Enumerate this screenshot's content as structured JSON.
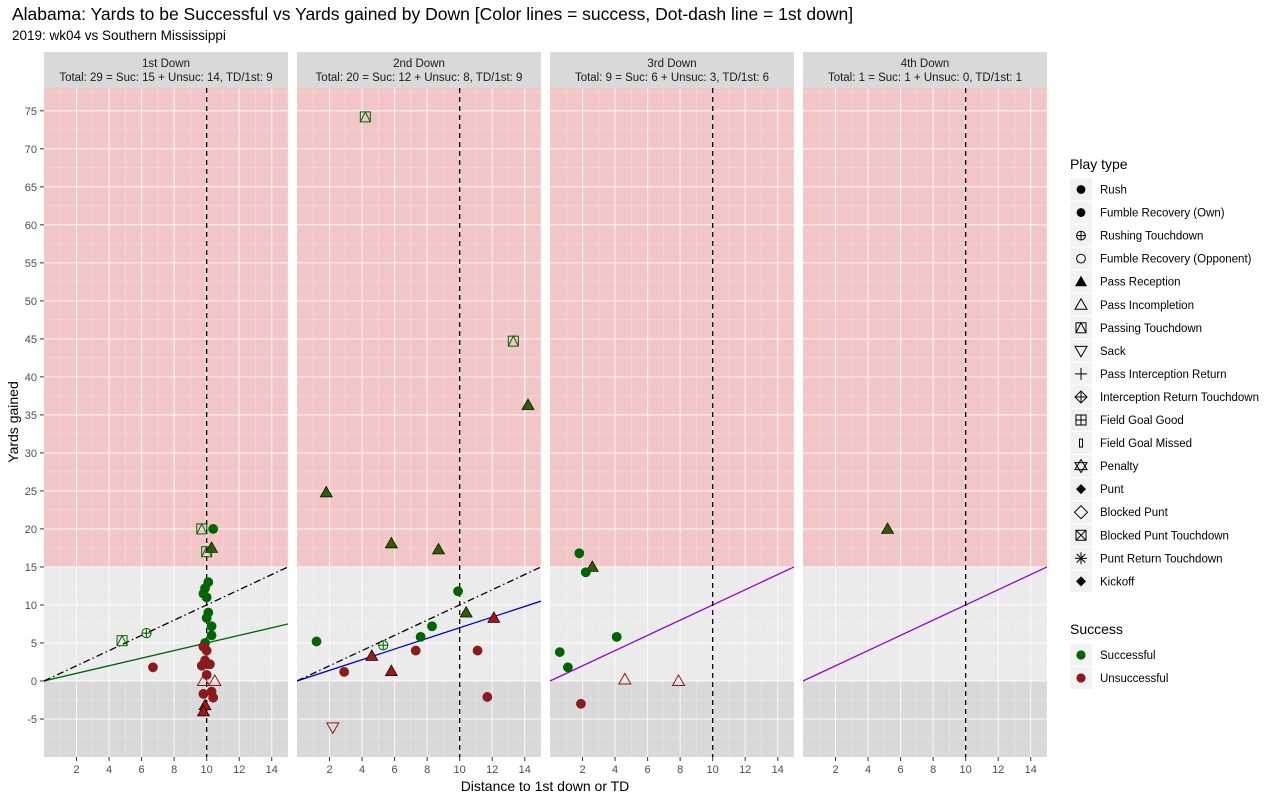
{
  "header": {
    "title": "Alabama: Yards to be Successful vs Yards gained by Down  [Color lines = success, Dot-dash line = 1st down]",
    "subtitle": "2019: wk04 vs Southern Mississippi"
  },
  "colors": {
    "successful": "#006400",
    "unsuccessful": "#8B1A1A",
    "pass_fill_successful": "#2E5E00",
    "pass_fill_unsuccessful": "#A01818",
    "zone_high": "#F2C6C6",
    "zone_mid": "#EBEBEB",
    "zone_low": "#D9D9D9",
    "strip": "#D9D9D9",
    "line_1st": "#006400",
    "line_2nd": "#0000CD",
    "line_3rd": "#9400D3",
    "line_4th": "#9400D3"
  },
  "legend": {
    "play_type_title": "Play type",
    "play_types": [
      {
        "label": "Rush",
        "shape": "circle-filled"
      },
      {
        "label": "Fumble Recovery (Own)",
        "shape": "circle-filled"
      },
      {
        "label": "Rushing Touchdown",
        "shape": "circle-plus"
      },
      {
        "label": "Fumble Recovery (Opponent)",
        "shape": "circle-open"
      },
      {
        "label": "Pass Reception",
        "shape": "triangle-filled"
      },
      {
        "label": "Pass Incompletion",
        "shape": "triangle-open"
      },
      {
        "label": "Passing Touchdown",
        "shape": "square-triangle"
      },
      {
        "label": "Sack",
        "shape": "triangle-down-open"
      },
      {
        "label": "Pass Interception Return",
        "shape": "plus"
      },
      {
        "label": "Interception Return Touchdown",
        "shape": "diamond-plus"
      },
      {
        "label": "Field Goal Good",
        "shape": "square-plus"
      },
      {
        "label": "Field Goal Missed",
        "shape": "small-rect"
      },
      {
        "label": "Penalty",
        "shape": "star-of-david"
      },
      {
        "label": "Punt",
        "shape": "diamond-filled"
      },
      {
        "label": "Blocked Punt",
        "shape": "diamond-open"
      },
      {
        "label": "Blocked Punt Touchdown",
        "shape": "square-x"
      },
      {
        "label": "Punt Return Touchdown",
        "shape": "asterisk"
      },
      {
        "label": "Kickoff",
        "shape": "diamond-filled"
      }
    ],
    "success_title": "Success",
    "success_items": [
      {
        "label": "Successful",
        "key": "successful"
      },
      {
        "label": "Unsuccessful",
        "key": "unsuccessful"
      }
    ]
  },
  "chart_data": {
    "type": "scatter",
    "xlabel": "Distance to 1st down or TD",
    "ylabel": "Yards gained",
    "xlim": [
      0,
      15
    ],
    "ylim": [
      -10,
      78
    ],
    "x_ticks": [
      2,
      4,
      6,
      8,
      10,
      12,
      14
    ],
    "y_ticks": [
      -5,
      0,
      5,
      10,
      15,
      20,
      25,
      30,
      35,
      40,
      45,
      50,
      55,
      60,
      65,
      70,
      75
    ],
    "shading": {
      "high_above": 15,
      "low_below": 0
    },
    "first_down_marker_x": 10,
    "panels": [
      {
        "strip_title": "1st Down",
        "strip_summary": "Total: 29 = Suc: 15 + Unsuc: 14, TD/1st: 9",
        "success_line": {
          "slope": 0.5,
          "color_key": "line_1st"
        },
        "first_down_line": true,
        "points": [
          {
            "x": 10.4,
            "y": 20,
            "shape": "circle-filled",
            "success": true
          },
          {
            "x": 9.7,
            "y": 20,
            "shape": "square-triangle",
            "success": true
          },
          {
            "x": 10.3,
            "y": 17.5,
            "shape": "triangle-filled",
            "success": true
          },
          {
            "x": 10.0,
            "y": 17.0,
            "shape": "square-triangle",
            "success": true
          },
          {
            "x": 10.1,
            "y": 13,
            "shape": "circle-filled",
            "success": true
          },
          {
            "x": 9.9,
            "y": 12.2,
            "shape": "circle-filled",
            "success": true
          },
          {
            "x": 9.8,
            "y": 11.5,
            "shape": "circle-filled",
            "success": true
          },
          {
            "x": 10.0,
            "y": 11.0,
            "shape": "circle-filled",
            "success": true
          },
          {
            "x": 10.1,
            "y": 9.0,
            "shape": "circle-filled",
            "success": true
          },
          {
            "x": 10.0,
            "y": 8.3,
            "shape": "circle-filled",
            "success": true
          },
          {
            "x": 10.3,
            "y": 7.2,
            "shape": "circle-filled",
            "success": true
          },
          {
            "x": 10.3,
            "y": 6.0,
            "shape": "circle-filled",
            "success": true
          },
          {
            "x": 6.3,
            "y": 6.3,
            "shape": "circle-plus",
            "success": true
          },
          {
            "x": 4.8,
            "y": 5.3,
            "shape": "square-triangle",
            "success": true
          },
          {
            "x": 9.9,
            "y": 5.0,
            "shape": "circle-filled",
            "success": true
          },
          {
            "x": 9.8,
            "y": 4.5,
            "shape": "circle-filled",
            "success": false
          },
          {
            "x": 10.0,
            "y": 4.0,
            "shape": "circle-filled",
            "success": false
          },
          {
            "x": 9.9,
            "y": 2.7,
            "shape": "circle-filled",
            "success": false
          },
          {
            "x": 10.2,
            "y": 2.2,
            "shape": "circle-filled",
            "success": false
          },
          {
            "x": 9.7,
            "y": 2.0,
            "shape": "circle-filled",
            "success": false
          },
          {
            "x": 6.7,
            "y": 1.8,
            "shape": "circle-filled",
            "success": false
          },
          {
            "x": 10.0,
            "y": 0.8,
            "shape": "circle-filled",
            "success": false
          },
          {
            "x": 9.8,
            "y": 0.0,
            "shape": "triangle-open",
            "success": false
          },
          {
            "x": 10.5,
            "y": 0.0,
            "shape": "triangle-open",
            "success": false
          },
          {
            "x": 9.8,
            "y": -1.7,
            "shape": "circle-filled",
            "success": false
          },
          {
            "x": 10.3,
            "y": -1.4,
            "shape": "circle-filled",
            "success": false
          },
          {
            "x": 10.4,
            "y": -2.2,
            "shape": "circle-filled",
            "success": false
          },
          {
            "x": 9.9,
            "y": -3.2,
            "shape": "triangle-filled",
            "success": false
          },
          {
            "x": 9.8,
            "y": -4.0,
            "shape": "triangle-filled",
            "success": false
          }
        ]
      },
      {
        "strip_title": "2nd Down",
        "strip_summary": "Total: 20 = Suc: 12 + Unsuc: 8, TD/1st: 9",
        "success_line": {
          "slope": 0.7,
          "color_key": "line_2nd"
        },
        "first_down_line": true,
        "points": [
          {
            "x": 4.2,
            "y": 74.2,
            "shape": "square-triangle",
            "success": true
          },
          {
            "x": 13.3,
            "y": 44.7,
            "shape": "square-triangle",
            "success": true
          },
          {
            "x": 14.2,
            "y": 36.3,
            "shape": "triangle-filled",
            "success": true
          },
          {
            "x": 1.8,
            "y": 24.8,
            "shape": "triangle-filled",
            "success": true
          },
          {
            "x": 5.8,
            "y": 18.1,
            "shape": "triangle-filled",
            "success": true
          },
          {
            "x": 8.7,
            "y": 17.3,
            "shape": "triangle-filled",
            "success": true
          },
          {
            "x": 9.9,
            "y": 11.8,
            "shape": "circle-filled",
            "success": true
          },
          {
            "x": 10.4,
            "y": 9.0,
            "shape": "triangle-filled",
            "success": true
          },
          {
            "x": 8.3,
            "y": 7.2,
            "shape": "circle-filled",
            "success": true
          },
          {
            "x": 7.6,
            "y": 5.8,
            "shape": "circle-filled",
            "success": true
          },
          {
            "x": 1.2,
            "y": 5.2,
            "shape": "circle-filled",
            "success": true
          },
          {
            "x": 5.3,
            "y": 4.7,
            "shape": "circle-plus",
            "success": true
          },
          {
            "x": 12.1,
            "y": 8.3,
            "shape": "triangle-filled",
            "success": false
          },
          {
            "x": 11.1,
            "y": 4.0,
            "shape": "circle-filled",
            "success": false
          },
          {
            "x": 7.3,
            "y": 4.0,
            "shape": "circle-filled",
            "success": false
          },
          {
            "x": 4.6,
            "y": 3.3,
            "shape": "triangle-filled",
            "success": false
          },
          {
            "x": 5.8,
            "y": 1.3,
            "shape": "triangle-filled",
            "success": false
          },
          {
            "x": 2.9,
            "y": 1.2,
            "shape": "circle-filled",
            "success": false
          },
          {
            "x": 11.7,
            "y": -2.1,
            "shape": "circle-filled",
            "success": false
          },
          {
            "x": 2.2,
            "y": -6.1,
            "shape": "triangle-down-open",
            "success": false
          }
        ]
      },
      {
        "strip_title": "3rd Down",
        "strip_summary": "Total: 9 = Suc: 6 + Unsuc: 3, TD/1st: 6",
        "success_line": {
          "slope": 1.0,
          "color_key": "line_3rd"
        },
        "first_down_line": false,
        "points": [
          {
            "x": 1.8,
            "y": 16.8,
            "shape": "circle-filled",
            "success": true
          },
          {
            "x": 2.6,
            "y": 15.0,
            "shape": "triangle-filled",
            "success": true
          },
          {
            "x": 2.2,
            "y": 14.3,
            "shape": "circle-filled",
            "success": true
          },
          {
            "x": 4.1,
            "y": 5.8,
            "shape": "circle-filled",
            "success": true
          },
          {
            "x": 0.6,
            "y": 3.8,
            "shape": "circle-filled",
            "success": true
          },
          {
            "x": 1.1,
            "y": 1.8,
            "shape": "circle-filled",
            "success": true
          },
          {
            "x": 4.6,
            "y": 0.2,
            "shape": "triangle-open",
            "success": false
          },
          {
            "x": 7.9,
            "y": 0.0,
            "shape": "triangle-open",
            "success": false
          },
          {
            "x": 1.9,
            "y": -3.0,
            "shape": "circle-filled",
            "success": false
          }
        ]
      },
      {
        "strip_title": "4th Down",
        "strip_summary": "Total: 1 = Suc: 1 + Unsuc: 0, TD/1st: 1",
        "success_line": {
          "slope": 1.0,
          "color_key": "line_4th"
        },
        "first_down_line": false,
        "points": [
          {
            "x": 5.2,
            "y": 20.0,
            "shape": "triangle-filled",
            "success": true
          }
        ]
      }
    ]
  }
}
